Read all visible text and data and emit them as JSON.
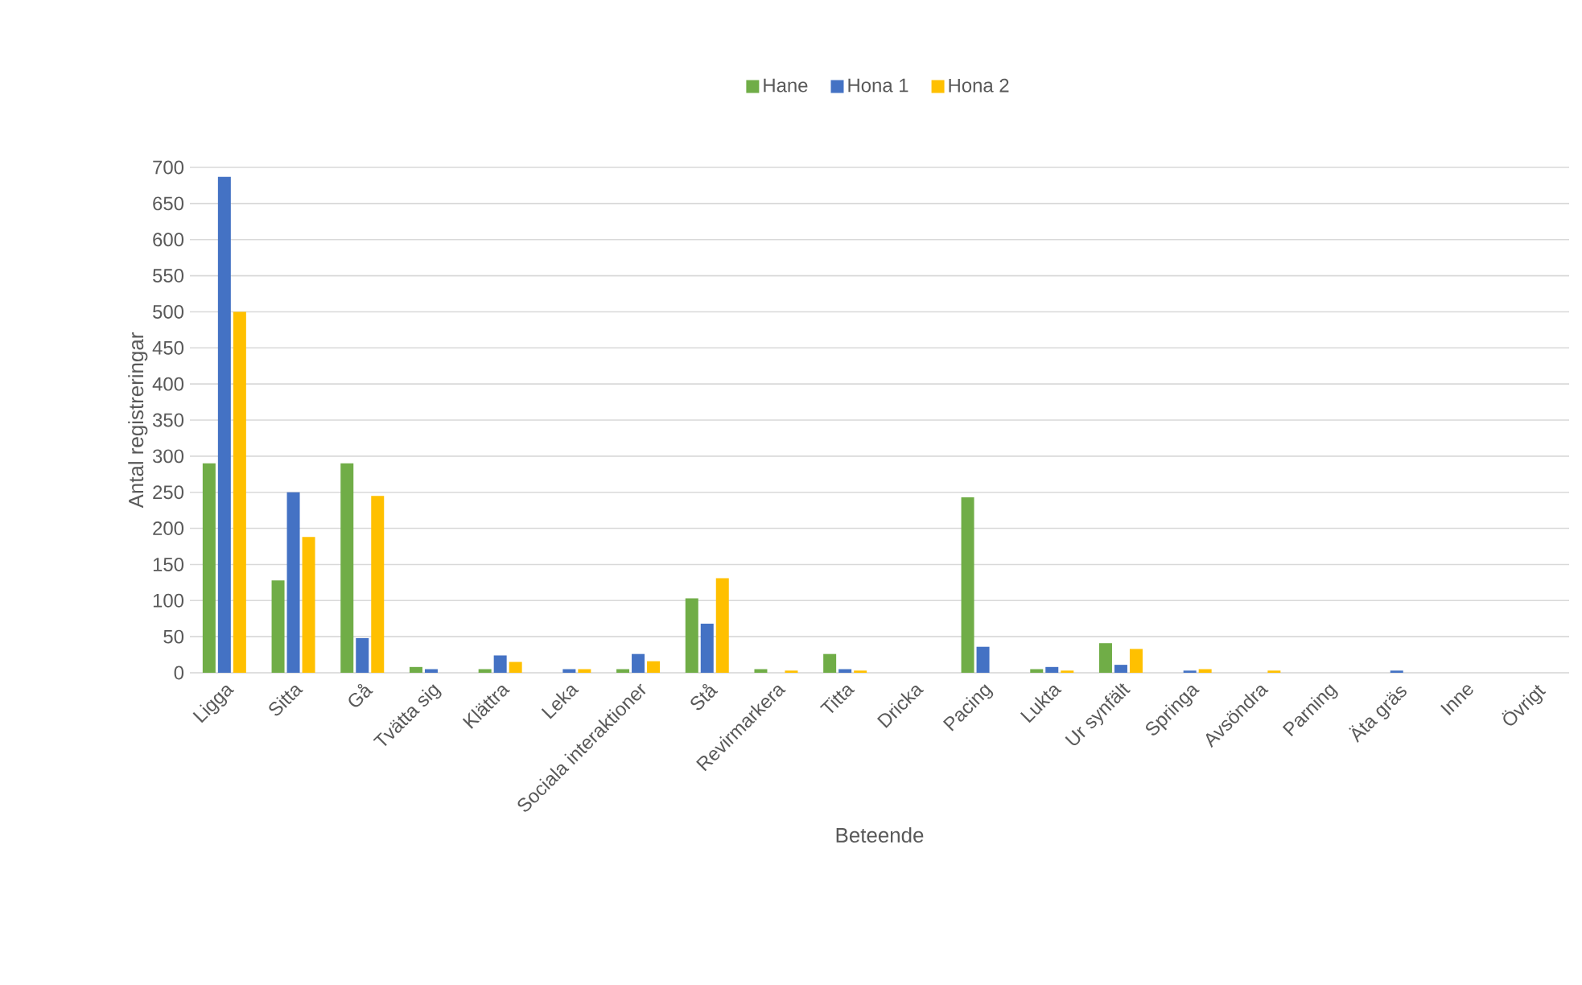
{
  "chart_data": {
    "type": "bar",
    "xlabel": "Beteende",
    "ylabel": "Antal registreringar",
    "categories": [
      "Ligga",
      "Sitta",
      "Gå",
      "Tvätta sig",
      "Klättra",
      "Leka",
      "Sociala interaktioner",
      "Stå",
      "Revirmarkera",
      "Titta",
      "Dricka",
      "Pacing",
      "Lukta",
      "Ur synfält",
      "Springa",
      "Avsöndra",
      "Parning",
      "Äta gräs",
      "Inne",
      "Övrigt"
    ],
    "series": [
      {
        "name": "Hane",
        "color": "#70ad47",
        "values": [
          290,
          128,
          290,
          8,
          5,
          0,
          5,
          103,
          5,
          26,
          0,
          243,
          5,
          41,
          0,
          0,
          0,
          0,
          0,
          0
        ]
      },
      {
        "name": "Hona 1",
        "color": "#4472c4",
        "values": [
          687,
          250,
          48,
          5,
          24,
          5,
          26,
          68,
          0,
          5,
          0,
          36,
          8,
          11,
          3,
          0,
          0,
          3,
          0,
          0
        ]
      },
      {
        "name": "Hona 2",
        "color": "#ffc000",
        "values": [
          500,
          188,
          245,
          0,
          15,
          5,
          16,
          131,
          3,
          3,
          0,
          0,
          3,
          33,
          5,
          3,
          0,
          0,
          0,
          0
        ]
      }
    ],
    "ylim": [
      0,
      700
    ],
    "yticks": [
      0,
      50,
      100,
      150,
      200,
      250,
      300,
      350,
      400,
      450,
      500,
      550,
      600,
      650,
      700
    ],
    "grid": "y",
    "legend": "top"
  }
}
